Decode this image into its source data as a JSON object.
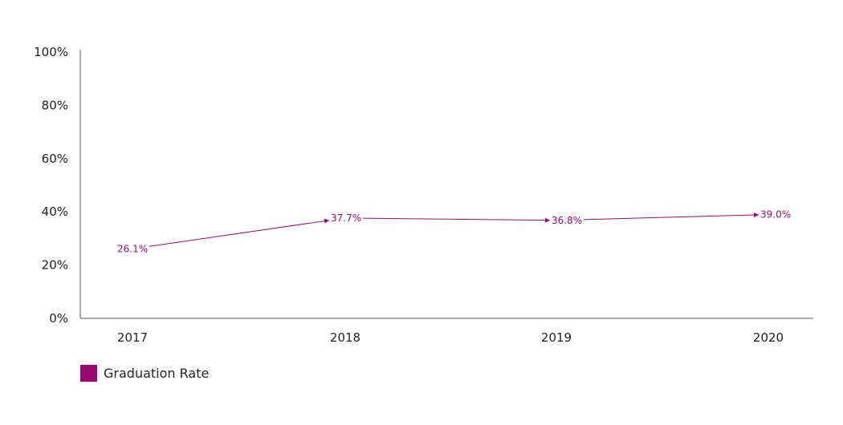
{
  "chart_data": {
    "type": "line",
    "x": [
      "2017",
      "2018",
      "2019",
      "2020"
    ],
    "series": [
      {
        "name": "Graduation Rate",
        "values": [
          26.1,
          37.7,
          36.8,
          39.0
        ],
        "labels": [
          "26.1%",
          "37.7%",
          "36.8%",
          "39.0%"
        ],
        "color": "#9b0a6e"
      }
    ],
    "ylim": [
      0,
      100
    ],
    "yticks": [
      "0%",
      "20%",
      "40%",
      "60%",
      "80%",
      "100%"
    ],
    "ytick_values": [
      0,
      20,
      40,
      60,
      80,
      100
    ],
    "grid": false,
    "legend_position": "bottom-left",
    "colors": {
      "series": "#9b0a6e",
      "axis": "#555555",
      "text": "#222222"
    }
  }
}
